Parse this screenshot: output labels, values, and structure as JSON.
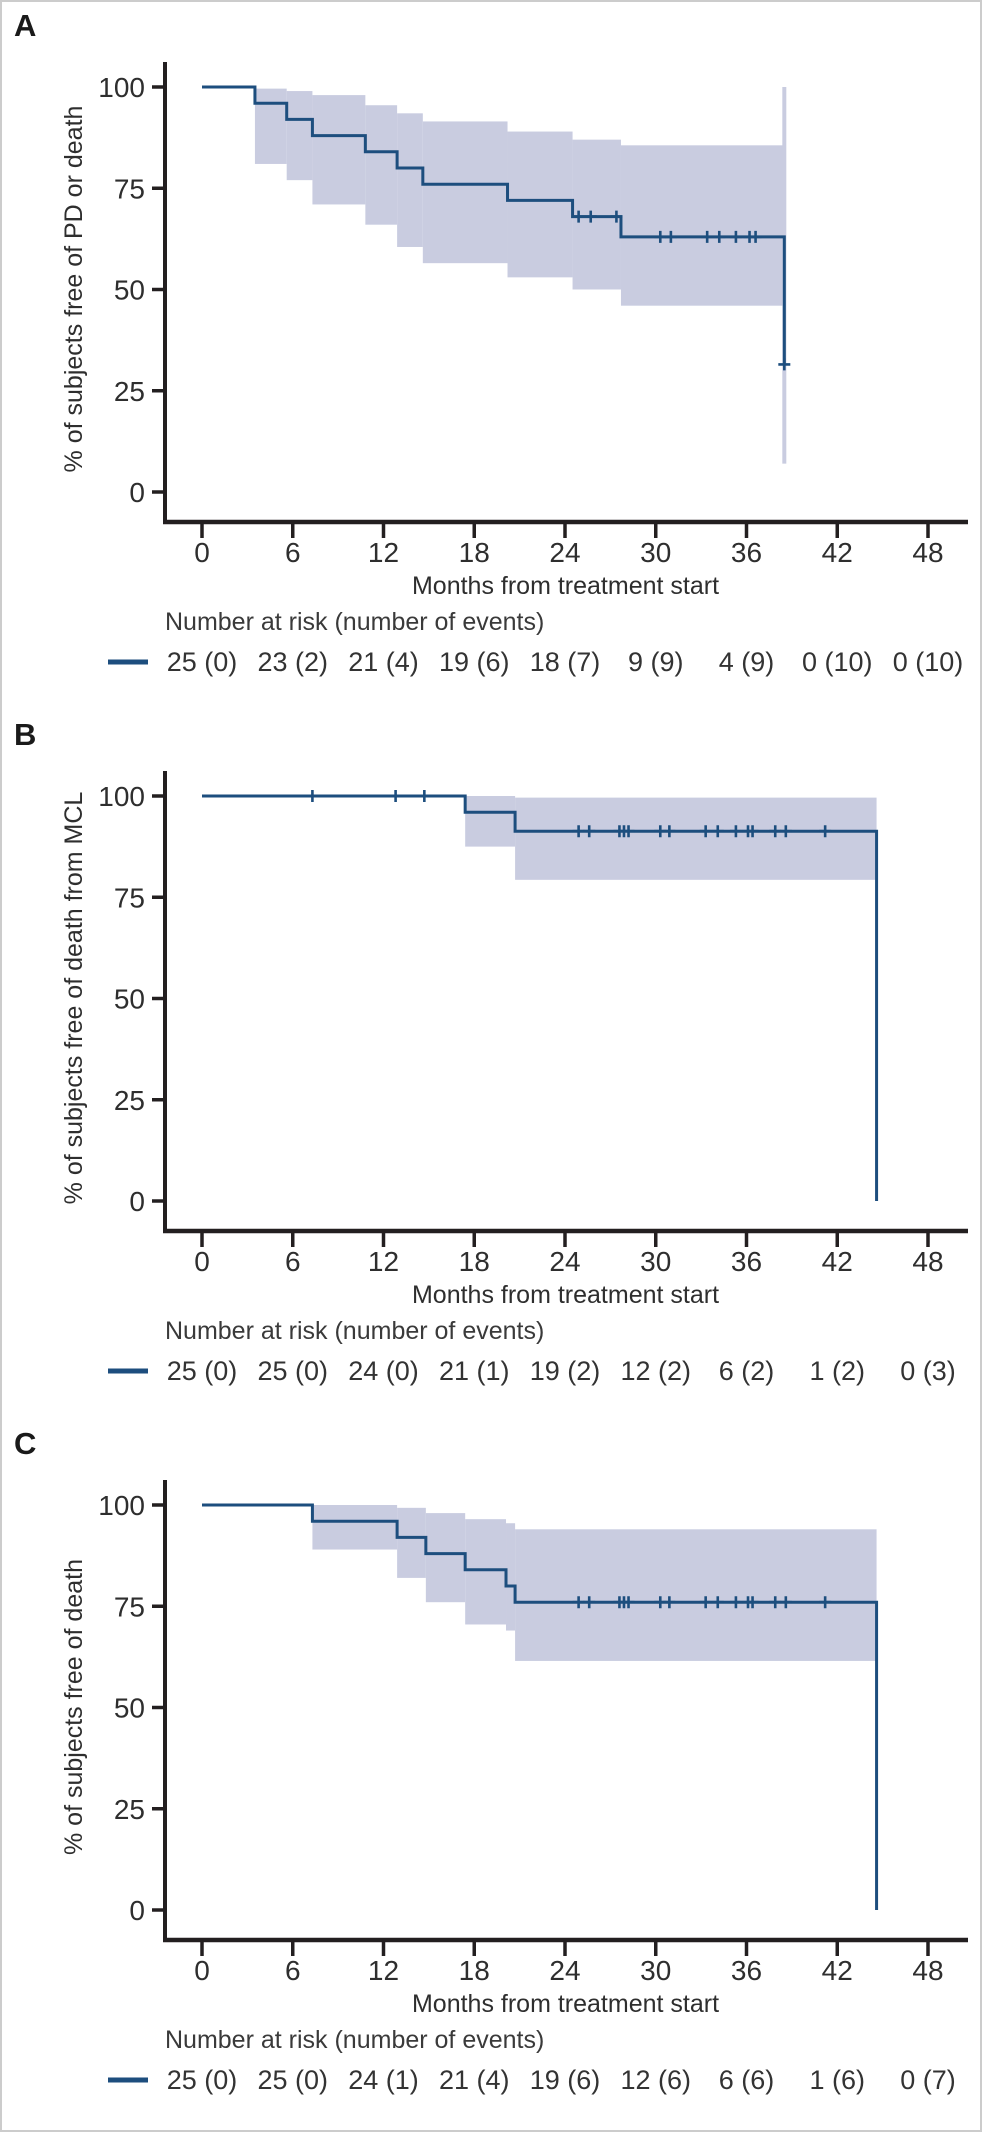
{
  "figure": {
    "xlabel": "Months from treatment start",
    "risk_header": "Number at risk (number of events)",
    "x_ticks": [
      "0",
      "6",
      "12",
      "18",
      "24",
      "30",
      "36",
      "42",
      "48"
    ],
    "y_ticks": [
      "0",
      "25",
      "50",
      "75",
      "100"
    ],
    "colors": {
      "line": "#1d4e7e",
      "band": "#c9cce0",
      "axis": "#231f20",
      "text": "#2e2e2e",
      "risk_text": "#333333"
    }
  },
  "chart_data": [
    {
      "type": "line",
      "panel": "A",
      "ylabel": "% of subjects free of PD or death",
      "xlabel": "Months from treatment start",
      "x_range": [
        0,
        48
      ],
      "y_range": [
        0,
        100
      ],
      "grid": false,
      "steps": [
        [
          0,
          100
        ],
        [
          3.5,
          96
        ],
        [
          5.6,
          92
        ],
        [
          7.3,
          88
        ],
        [
          10.8,
          84
        ],
        [
          12.9,
          80
        ],
        [
          14.6,
          76
        ],
        [
          20.2,
          72
        ],
        [
          24.5,
          68
        ],
        [
          27.7,
          63
        ],
        [
          38.5,
          31.5
        ]
      ],
      "censor_marks": [
        [
          24.9,
          68
        ],
        [
          25.7,
          68
        ],
        [
          27.4,
          68
        ],
        [
          30.3,
          63
        ],
        [
          31.0,
          63
        ],
        [
          33.4,
          63
        ],
        [
          34.2,
          63
        ],
        [
          35.3,
          63
        ],
        [
          36.2,
          63
        ],
        [
          36.6,
          63
        ],
        [
          38.5,
          31.5
        ]
      ],
      "ci_band_segments": [
        [
          3.5,
          5.6,
          99.6,
          81
        ],
        [
          5.6,
          7.3,
          99,
          77
        ],
        [
          7.3,
          10.8,
          98,
          71
        ],
        [
          10.8,
          12.9,
          95.5,
          66
        ],
        [
          12.9,
          14.6,
          93.5,
          60.5
        ],
        [
          14.6,
          20.2,
          91.5,
          56.5
        ],
        [
          20.2,
          24.5,
          89,
          53
        ],
        [
          24.5,
          27.7,
          87,
          50
        ],
        [
          27.7,
          38.5,
          85.6,
          46
        ]
      ],
      "ci_terminal_bar": {
        "x": 38.5,
        "upper": 100,
        "lower": 7
      },
      "risk_counts": [
        "25 (0)",
        "23 (2)",
        "21 (4)",
        "19 (6)",
        "18 (7)",
        "9 (9)",
        "4 (9)",
        "0 (10)",
        "0 (10)"
      ]
    },
    {
      "type": "line",
      "panel": "B",
      "ylabel": "% of subjects free of death from MCL",
      "xlabel": "Months from treatment start",
      "x_range": [
        0,
        48
      ],
      "y_range": [
        0,
        100
      ],
      "grid": false,
      "steps": [
        [
          0,
          100
        ],
        [
          17.4,
          96
        ],
        [
          20.7,
          91.3
        ],
        [
          44.6,
          0
        ]
      ],
      "censor_marks": [
        [
          7.3,
          100
        ],
        [
          12.8,
          100
        ],
        [
          14.7,
          100
        ],
        [
          24.9,
          91.3
        ],
        [
          25.6,
          91.3
        ],
        [
          27.6,
          91.3
        ],
        [
          27.9,
          91.3
        ],
        [
          28.2,
          91.3
        ],
        [
          30.3,
          91.3
        ],
        [
          30.9,
          91.3
        ],
        [
          33.3,
          91.3
        ],
        [
          34.1,
          91.3
        ],
        [
          35.3,
          91.3
        ],
        [
          36.1,
          91.3
        ],
        [
          36.4,
          91.3
        ],
        [
          37.9,
          91.3
        ],
        [
          38.6,
          91.3
        ],
        [
          41.2,
          91.3
        ]
      ],
      "ci_band_segments": [
        [
          17.4,
          20.7,
          100,
          87.5
        ],
        [
          20.7,
          44.6,
          99.6,
          79.3
        ]
      ],
      "ci_terminal_bar": null,
      "risk_counts": [
        "25 (0)",
        "25 (0)",
        "24 (0)",
        "21 (1)",
        "19 (2)",
        "12 (2)",
        "6 (2)",
        "1 (2)",
        "0 (3)"
      ]
    },
    {
      "type": "line",
      "panel": "C",
      "ylabel": "% of subjects free of death",
      "xlabel": "Months from treatment start",
      "x_range": [
        0,
        48
      ],
      "y_range": [
        0,
        100
      ],
      "grid": false,
      "steps": [
        [
          0,
          100
        ],
        [
          7.3,
          96
        ],
        [
          12.9,
          92
        ],
        [
          14.8,
          88
        ],
        [
          17.4,
          84
        ],
        [
          20.1,
          80
        ],
        [
          20.7,
          76
        ],
        [
          44.6,
          0
        ]
      ],
      "censor_marks": [
        [
          24.9,
          76
        ],
        [
          25.6,
          76
        ],
        [
          27.6,
          76
        ],
        [
          27.9,
          76
        ],
        [
          28.2,
          76
        ],
        [
          30.3,
          76
        ],
        [
          30.9,
          76
        ],
        [
          33.3,
          76
        ],
        [
          34.1,
          76
        ],
        [
          35.3,
          76
        ],
        [
          36.1,
          76
        ],
        [
          36.4,
          76
        ],
        [
          37.9,
          76
        ],
        [
          38.6,
          76
        ],
        [
          41.2,
          76
        ]
      ],
      "ci_band_segments": [
        [
          7.3,
          12.9,
          100,
          89
        ],
        [
          12.9,
          14.8,
          99.3,
          82
        ],
        [
          14.8,
          17.4,
          98,
          76
        ],
        [
          17.4,
          20.1,
          96.5,
          70.5
        ],
        [
          20.1,
          20.7,
          95.5,
          69
        ],
        [
          20.7,
          44.6,
          94,
          61.5
        ]
      ],
      "ci_terminal_bar": null,
      "risk_counts": [
        "25 (0)",
        "25 (0)",
        "24 (1)",
        "21 (4)",
        "19 (6)",
        "12 (6)",
        "6 (6)",
        "1 (6)",
        "0 (7)"
      ]
    }
  ]
}
